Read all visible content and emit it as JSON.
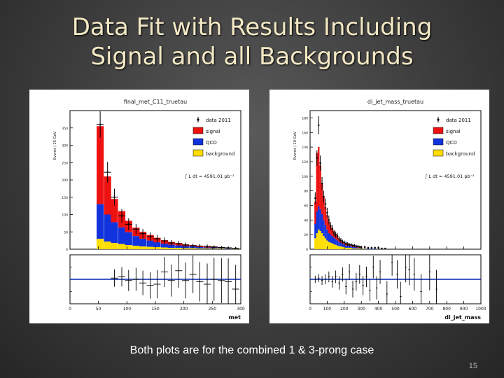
{
  "slide": {
    "title_line1": "Data Fit with Results Including",
    "title_line2": "Signal and all Backgrounds",
    "caption": "Both plots are for the combined 1 & 3-prong case",
    "page_number": "15"
  },
  "colors": {
    "signal": "#ee1111",
    "qcd": "#1133dd",
    "background": "#ffdd00",
    "data": "#000000",
    "fit_line": "#0022aa"
  },
  "legend_labels": [
    "data 2011",
    "signal",
    "QCD",
    "background"
  ],
  "lumi_label": "∫ L dt = 4591.01 pb⁻¹",
  "chart_data": [
    {
      "type": "bar",
      "title": "final_met_C11_truetau",
      "xlabel": "met",
      "ylabel": "Events / 25 GeV",
      "xlim": [
        0,
        300
      ],
      "ylim": [
        0,
        400
      ],
      "x_ticks": [
        0,
        50,
        100,
        150,
        200,
        250,
        300
      ],
      "y_ticks": [
        0,
        50,
        100,
        150,
        200,
        250,
        300,
        350
      ],
      "bin_width": 12.5,
      "x": [
        53,
        66,
        78,
        91,
        103,
        116,
        128,
        141,
        153,
        166,
        178,
        191,
        203,
        216,
        228,
        241,
        253,
        266,
        278,
        291
      ],
      "series": [
        {
          "name": "background",
          "values": [
            30,
            22,
            18,
            15,
            12,
            10,
            8,
            7,
            6,
            5,
            4,
            4,
            3,
            3,
            2,
            2,
            2,
            2,
            1,
            1
          ]
        },
        {
          "name": "QCD",
          "values": [
            100,
            78,
            60,
            48,
            37,
            28,
            22,
            18,
            14,
            11,
            9,
            7,
            6,
            5,
            4,
            3,
            3,
            2,
            2,
            2
          ]
        },
        {
          "name": "signal",
          "values": [
            225,
            110,
            67,
            47,
            33,
            24,
            20,
            16,
            13,
            10,
            8,
            7,
            5,
            4,
            4,
            3,
            3,
            2,
            2,
            1
          ]
        }
      ],
      "data_points": {
        "x": [
          53,
          66,
          78,
          91,
          103,
          116,
          128,
          141,
          153,
          166,
          178,
          191,
          203,
          216,
          228,
          241,
          253,
          266,
          278,
          291
        ],
        "y": [
          360,
          222,
          150,
          96,
          72,
          58,
          45,
          36,
          30,
          24,
          18,
          16,
          12,
          10,
          9,
          8,
          6,
          5,
          4,
          3
        ]
      },
      "ratio": {
        "ylim": [
          0,
          2
        ],
        "reference": 1,
        "x": [
          78,
          91,
          103,
          116,
          128,
          141,
          153,
          166,
          178,
          191,
          203,
          216,
          228,
          241,
          253,
          266,
          278,
          291
        ],
        "y": [
          1.05,
          1.1,
          0.95,
          1.0,
          0.85,
          0.75,
          0.8,
          1.3,
          0.95,
          1.35,
          0.95,
          1.2,
          0.9,
          0.8,
          1.0,
          0.95,
          0.9,
          0.6
        ]
      }
    },
    {
      "type": "bar",
      "title": "di_jet_mass_truetau",
      "xlabel": "di_jet_mass",
      "ylabel": "Events / 10 GeV",
      "xlim": [
        0,
        1000
      ],
      "ylim": [
        0,
        190
      ],
      "x_ticks": [
        0,
        100,
        200,
        300,
        400,
        500,
        600,
        700,
        800,
        900,
        1000
      ],
      "y_ticks": [
        0,
        20,
        40,
        60,
        80,
        100,
        120,
        140,
        160,
        180
      ],
      "bin_width": 10,
      "x": [
        30,
        40,
        50,
        60,
        70,
        80,
        90,
        100,
        110,
        120,
        130,
        140,
        150,
        160,
        170,
        180,
        190,
        200,
        210,
        220,
        230,
        240,
        250,
        260,
        270,
        280,
        290,
        300,
        320,
        340,
        360,
        380,
        400,
        420,
        440
      ],
      "series": [
        {
          "name": "background",
          "values": [
            15,
            22,
            27,
            25,
            22,
            18,
            15,
            12,
            10,
            9,
            8,
            7,
            6,
            5,
            4,
            4,
            3,
            3,
            2,
            2,
            2,
            2,
            1,
            1,
            1,
            1,
            1,
            1,
            1,
            0,
            0,
            0,
            0,
            0,
            0
          ]
        },
        {
          "name": "QCD",
          "values": [
            20,
            30,
            32,
            30,
            26,
            22,
            18,
            15,
            12,
            11,
            10,
            9,
            8,
            7,
            6,
            5,
            4,
            4,
            3,
            3,
            3,
            2,
            2,
            2,
            2,
            1,
            1,
            1,
            1,
            1,
            1,
            1,
            0,
            0,
            0
          ]
        },
        {
          "name": "signal",
          "values": [
            30,
            80,
            81,
            60,
            42,
            32,
            25,
            20,
            16,
            13,
            11,
            9,
            7,
            6,
            5,
            4,
            4,
            3,
            3,
            3,
            2,
            2,
            2,
            2,
            1,
            1,
            1,
            1,
            1,
            1,
            0,
            0,
            0,
            0,
            0
          ]
        }
      ],
      "data_points": {
        "x": [
          30,
          40,
          50,
          60,
          70,
          80,
          90,
          100,
          110,
          120,
          130,
          140,
          150,
          160,
          170,
          180,
          190,
          200,
          210,
          220,
          230,
          240,
          250,
          260,
          270,
          280,
          290,
          300,
          320,
          340,
          360,
          380,
          400,
          420,
          440
        ],
        "y": [
          70,
          125,
          170,
          118,
          90,
          72,
          62,
          50,
          40,
          32,
          28,
          22,
          20,
          18,
          14,
          12,
          10,
          9,
          8,
          7,
          6,
          6,
          5,
          5,
          4,
          4,
          3,
          3,
          3,
          2,
          2,
          2,
          2,
          1,
          1
        ]
      },
      "ratio": {
        "ylim": [
          0,
          2
        ],
        "reference": 1,
        "x": [
          30,
          50,
          70,
          90,
          110,
          130,
          150,
          170,
          190,
          210,
          230,
          250,
          270,
          290,
          310,
          330,
          350,
          370,
          390,
          410,
          450,
          480,
          510,
          530,
          560,
          580,
          610,
          650,
          700,
          740
        ],
        "y": [
          1.0,
          1.05,
          0.95,
          1.0,
          1.1,
          0.9,
          1.1,
          0.85,
          1.2,
          0.7,
          1.3,
          0.6,
          0.9,
          1.2,
          0.75,
          1.1,
          0.55,
          1.5,
          0.65,
          1.3,
          0.4,
          1.7,
          1.2,
          0.3,
          1.5,
          1.4,
          1.2,
          0.5,
          1.3,
          0.6
        ]
      }
    }
  ]
}
